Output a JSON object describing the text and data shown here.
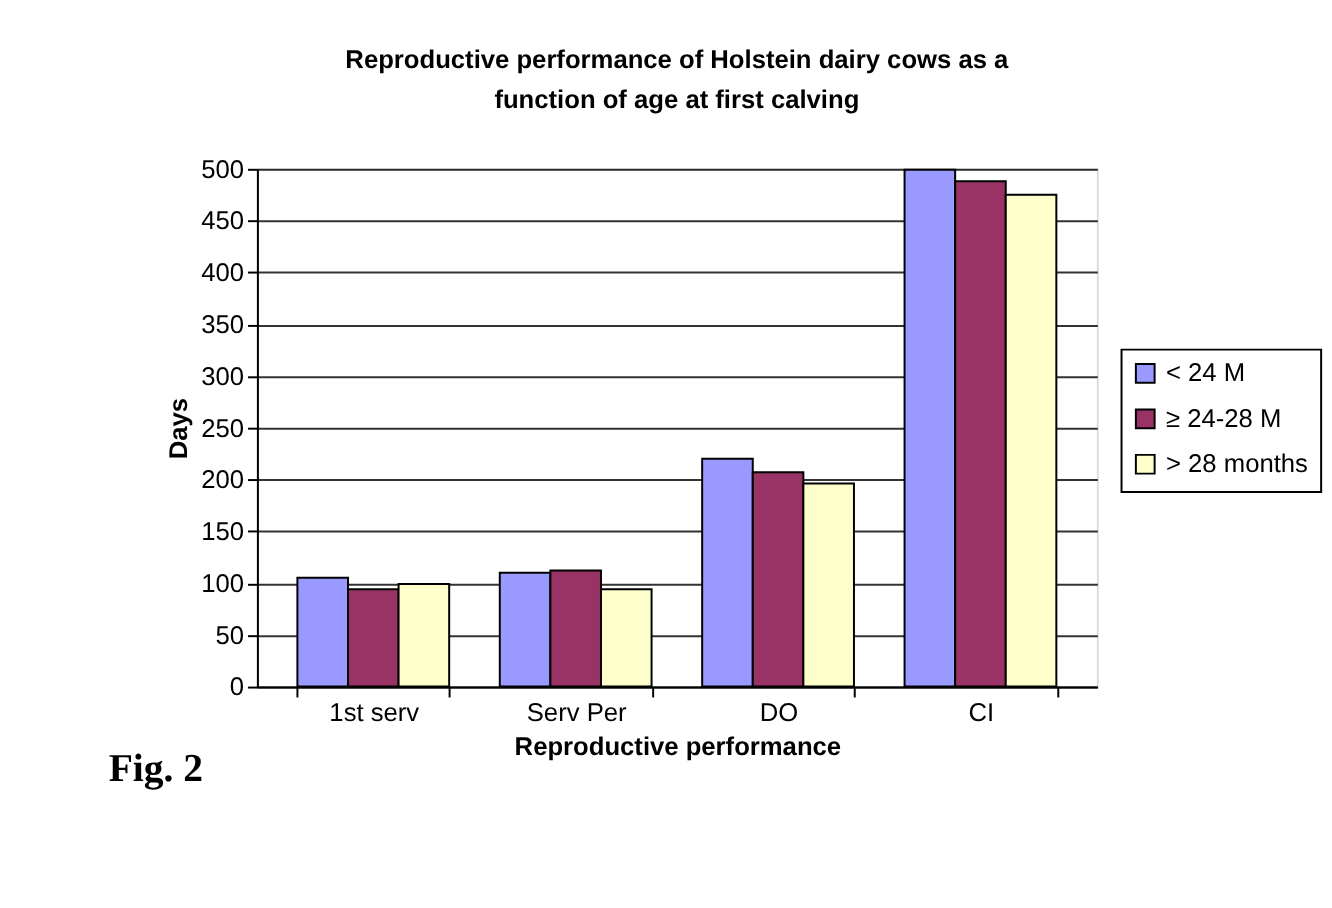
{
  "chart_data": {
    "type": "bar",
    "title": "Reproductive performance of Holstein dairy cows as a function of age at first calving",
    "xlabel": "Reproductive performance",
    "ylabel": "Days",
    "categories": [
      "1st serv",
      "Serv Per",
      "DO",
      "CI"
    ],
    "series": [
      {
        "name": "< 24 M",
        "color": "#9999ff",
        "values": [
          105,
          110,
          220,
          499
        ]
      },
      {
        "name": "≥ 24-28 M",
        "color": "#993366",
        "values": [
          94,
          112,
          207,
          488
        ]
      },
      {
        "name": "> 28 months",
        "color": "#ffffcc",
        "values": [
          99,
          94,
          196,
          475
        ]
      }
    ],
    "ylim": [
      0,
      500
    ],
    "yticks": [
      0,
      50,
      100,
      150,
      200,
      250,
      300,
      350,
      400,
      450,
      500
    ],
    "grid": "y",
    "legend": "right",
    "annotations": [
      "Fig. 2"
    ]
  }
}
